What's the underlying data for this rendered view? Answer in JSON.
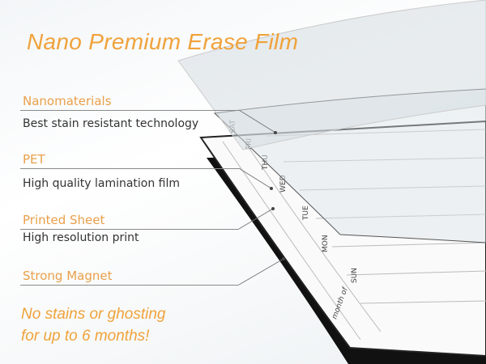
{
  "title": "Nano Premium Erase Film",
  "layers": [
    {
      "label": "Nanomaterials",
      "description": "Best stain resistant technology"
    },
    {
      "label": "PET",
      "description": "High quality lamination film"
    },
    {
      "label": "Printed Sheet",
      "description": "High resolution print"
    },
    {
      "label": "Strong Magnet",
      "description": ""
    }
  ],
  "tagline": [
    "No stains or ghosting",
    "for up to 6 months!"
  ],
  "calendar": {
    "month_label": "month of",
    "days": [
      "SUN",
      "MON",
      "TUE",
      "WED",
      "THU",
      "FRI",
      "SAT"
    ]
  },
  "colors": {
    "accent": "#f0a23a",
    "text": "#333333",
    "magnet": "#111111"
  }
}
